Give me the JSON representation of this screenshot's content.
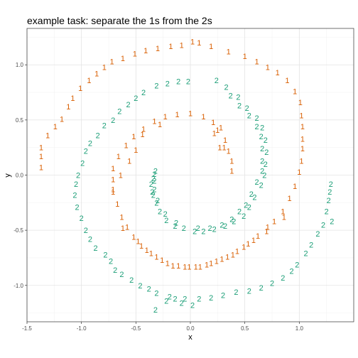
{
  "chart_data": {
    "type": "scatter",
    "title": "example task: separate the 1s from the 2s",
    "xlabel": "x",
    "ylabel": "y",
    "xlim": [
      -1.5,
      1.5
    ],
    "ylim": [
      -1.33,
      1.33
    ],
    "x_ticks": [
      -1.5,
      -1.0,
      -0.5,
      0.0,
      0.5,
      1.0
    ],
    "x_tick_labels": [
      "-1.5",
      "-1.0",
      "-0.5",
      "0.0",
      "0.5",
      "1.0"
    ],
    "y_ticks": [
      -1.0,
      -0.5,
      0.0,
      0.5,
      1.0
    ],
    "y_tick_labels": [
      "-1.0",
      "-0.5",
      "0.0",
      "0.5",
      "1.0"
    ],
    "grid": true,
    "legend": "none",
    "series": [
      {
        "label": "1",
        "color": "#D95F02",
        "points": [
          [
            0.02,
            1.21
          ],
          [
            0.08,
            1.2
          ],
          [
            0.19,
            1.17
          ],
          [
            0.35,
            1.12
          ],
          [
            0.5,
            1.08
          ],
          [
            0.61,
            1.03
          ],
          [
            0.71,
            0.98
          ],
          [
            0.8,
            0.93
          ],
          [
            0.89,
            0.86
          ],
          [
            0.96,
            0.76
          ],
          [
            1.01,
            0.66
          ],
          [
            1.02,
            0.54
          ],
          [
            1.03,
            0.44
          ],
          [
            1.03,
            0.33
          ],
          [
            1.03,
            0.24
          ],
          [
            1.02,
            0.13
          ],
          [
            1.0,
            0.03
          ],
          [
            0.96,
            -0.1
          ],
          [
            0.91,
            -0.21
          ],
          [
            0.85,
            -0.33
          ],
          [
            0.77,
            -0.42
          ],
          [
            0.71,
            -0.47
          ],
          [
            0.62,
            -0.55
          ],
          [
            0.53,
            -0.62
          ],
          [
            0.43,
            -0.69
          ],
          [
            0.34,
            -0.74
          ],
          [
            0.24,
            -0.78
          ],
          [
            0.15,
            -0.81
          ],
          [
            0.05,
            -0.83
          ],
          [
            -0.05,
            -0.83
          ],
          [
            -0.16,
            -0.82
          ],
          [
            -0.26,
            -0.77
          ],
          [
            -0.36,
            -0.71
          ],
          [
            -0.45,
            -0.64
          ],
          [
            -0.52,
            -0.56
          ],
          [
            -0.58,
            -0.47
          ],
          [
            -0.63,
            -0.38
          ],
          [
            -0.67,
            -0.26
          ],
          [
            -0.71,
            -0.15
          ],
          [
            -0.71,
            -0.04
          ],
          [
            -0.71,
            0.06
          ],
          [
            -0.66,
            0.17
          ],
          [
            -0.59,
            0.27
          ],
          [
            -0.52,
            0.35
          ],
          [
            -0.43,
            0.42
          ],
          [
            -0.33,
            0.49
          ],
          [
            -0.23,
            0.53
          ],
          [
            -0.12,
            0.55
          ],
          [
            0.0,
            0.56
          ],
          [
            0.12,
            0.53
          ],
          [
            0.21,
            0.48
          ],
          [
            0.28,
            0.43
          ],
          [
            0.32,
            0.32
          ],
          [
            0.35,
            0.22
          ],
          [
            0.38,
            0.13
          ],
          [
            0.38,
            0.04
          ],
          [
            0.31,
            0.25
          ],
          [
            0.25,
            0.41
          ],
          [
            -1.37,
            0.25
          ],
          [
            -1.37,
            0.17
          ],
          [
            -1.37,
            0.07
          ],
          [
            -1.31,
            0.36
          ],
          [
            -1.24,
            0.44
          ],
          [
            -1.18,
            0.51
          ],
          [
            -1.12,
            0.62
          ],
          [
            -1.08,
            0.7
          ],
          [
            -1.01,
            0.79
          ],
          [
            -0.93,
            0.86
          ],
          [
            -0.86,
            0.92
          ],
          [
            -0.79,
            0.98
          ],
          [
            -0.72,
            1.03
          ],
          [
            -0.62,
            1.06
          ],
          [
            -0.51,
            1.1
          ],
          [
            -0.41,
            1.13
          ],
          [
            -0.3,
            1.15
          ],
          [
            -0.18,
            1.17
          ],
          [
            -0.08,
            1.18
          ],
          [
            -0.28,
            0.46
          ],
          [
            -0.44,
            0.37
          ],
          [
            -0.5,
            0.23
          ],
          [
            -0.56,
            0.13
          ],
          [
            -0.64,
            0.0
          ],
          [
            -0.71,
            -0.13
          ],
          [
            -0.62,
            -0.48
          ],
          [
            0.27,
            0.25
          ],
          [
            0.22,
            0.38
          ],
          [
            0.86,
            -0.38
          ],
          [
            0.7,
            -0.51
          ],
          [
            0.58,
            -0.59
          ],
          [
            0.49,
            -0.65
          ],
          [
            0.39,
            -0.72
          ],
          [
            0.29,
            -0.76
          ],
          [
            0.19,
            -0.8
          ],
          [
            0.09,
            -0.83
          ],
          [
            -0.01,
            -0.83
          ],
          [
            -0.11,
            -0.82
          ],
          [
            -0.21,
            -0.8
          ],
          [
            -0.31,
            -0.74
          ],
          [
            -0.4,
            -0.68
          ],
          [
            -0.48,
            -0.6
          ]
        ]
      },
      {
        "label": "2",
        "color": "#1B9E77",
        "points": [
          [
            0.24,
            0.86
          ],
          [
            0.33,
            0.8
          ],
          [
            0.44,
            0.71
          ],
          [
            0.52,
            0.61
          ],
          [
            0.61,
            0.52
          ],
          [
            0.66,
            0.43
          ],
          [
            0.69,
            0.32
          ],
          [
            0.7,
            0.21
          ],
          [
            0.69,
            0.1
          ],
          [
            0.68,
            0.0
          ],
          [
            0.65,
            -0.09
          ],
          [
            0.59,
            -0.2
          ],
          [
            0.54,
            -0.29
          ],
          [
            0.49,
            -0.37
          ],
          [
            0.4,
            -0.42
          ],
          [
            0.32,
            -0.46
          ],
          [
            0.22,
            -0.49
          ],
          [
            0.12,
            -0.51
          ],
          [
            0.04,
            -0.51
          ],
          [
            -0.06,
            -0.48
          ],
          [
            -0.14,
            -0.46
          ],
          [
            -0.22,
            -0.41
          ],
          [
            -0.28,
            -0.33
          ],
          [
            -0.31,
            -0.25
          ],
          [
            -0.33,
            -0.13
          ],
          [
            -0.33,
            -0.05
          ],
          [
            -0.33,
            0.01
          ],
          [
            -0.34,
            -0.18
          ],
          [
            -0.32,
            0.04
          ],
          [
            -0.34,
            -0.03
          ],
          [
            -0.36,
            -0.08
          ],
          [
            -0.35,
            -0.15
          ],
          [
            -0.3,
            -0.23
          ],
          [
            -0.23,
            -0.35
          ],
          [
            -0.13,
            -0.43
          ],
          [
            0.07,
            -0.48
          ],
          [
            0.18,
            -0.48
          ],
          [
            0.29,
            -0.45
          ],
          [
            0.38,
            -0.4
          ],
          [
            0.45,
            -0.33
          ],
          [
            0.51,
            -0.27
          ],
          [
            0.56,
            -0.17
          ],
          [
            0.61,
            -0.06
          ],
          [
            0.66,
            0.04
          ],
          [
            0.66,
            0.13
          ],
          [
            0.66,
            0.24
          ],
          [
            0.65,
            0.35
          ],
          [
            0.61,
            0.44
          ],
          [
            0.54,
            0.54
          ],
          [
            0.45,
            0.63
          ],
          [
            0.37,
            0.72
          ],
          [
            -0.02,
            0.85
          ],
          [
            -0.11,
            0.85
          ],
          [
            -0.21,
            0.83
          ],
          [
            -0.31,
            0.81
          ],
          [
            -0.43,
            0.75
          ],
          [
            -0.5,
            0.7
          ],
          [
            -0.57,
            0.64
          ],
          [
            -0.65,
            0.58
          ],
          [
            -0.71,
            0.5
          ],
          [
            -0.79,
            0.45
          ],
          [
            -0.85,
            0.36
          ],
          [
            -0.92,
            0.29
          ],
          [
            -0.96,
            0.22
          ],
          [
            -0.99,
            0.11
          ],
          [
            -1.03,
            0.0
          ],
          [
            -1.05,
            -0.08
          ],
          [
            -1.06,
            -0.18
          ],
          [
            -1.04,
            -0.29
          ],
          [
            -1.0,
            -0.39
          ],
          [
            -0.96,
            -0.5
          ],
          [
            -0.92,
            -0.58
          ],
          [
            -0.87,
            -0.66
          ],
          [
            -0.78,
            -0.72
          ],
          [
            -0.73,
            -0.78
          ],
          [
            -0.69,
            -0.86
          ],
          [
            -0.63,
            -0.9
          ],
          [
            -0.54,
            -0.95
          ],
          [
            -0.46,
            -1.0
          ],
          [
            -0.38,
            -1.03
          ],
          [
            -0.31,
            -1.07
          ],
          [
            -0.19,
            -1.1
          ],
          [
            -0.14,
            -1.12
          ],
          [
            -0.05,
            -1.12
          ],
          [
            0.08,
            -1.12
          ],
          [
            0.19,
            -1.11
          ],
          [
            0.3,
            -1.09
          ],
          [
            0.42,
            -1.06
          ],
          [
            0.54,
            -1.05
          ],
          [
            0.65,
            -1.02
          ],
          [
            0.75,
            -0.98
          ],
          [
            0.85,
            -0.93
          ],
          [
            0.93,
            -0.87
          ],
          [
            0.98,
            -0.81
          ],
          [
            1.06,
            -0.71
          ],
          [
            1.11,
            -0.63
          ],
          [
            1.17,
            -0.53
          ],
          [
            1.22,
            -0.45
          ],
          [
            1.25,
            -0.33
          ],
          [
            1.27,
            -0.23
          ],
          [
            1.28,
            -0.15
          ],
          [
            1.29,
            -0.08
          ],
          [
            -0.32,
            -1.22
          ],
          [
            -0.22,
            -1.14
          ],
          [
            -0.08,
            -1.16
          ],
          [
            0.02,
            -1.18
          ],
          [
            1.3,
            -0.42
          ]
        ]
      }
    ]
  }
}
